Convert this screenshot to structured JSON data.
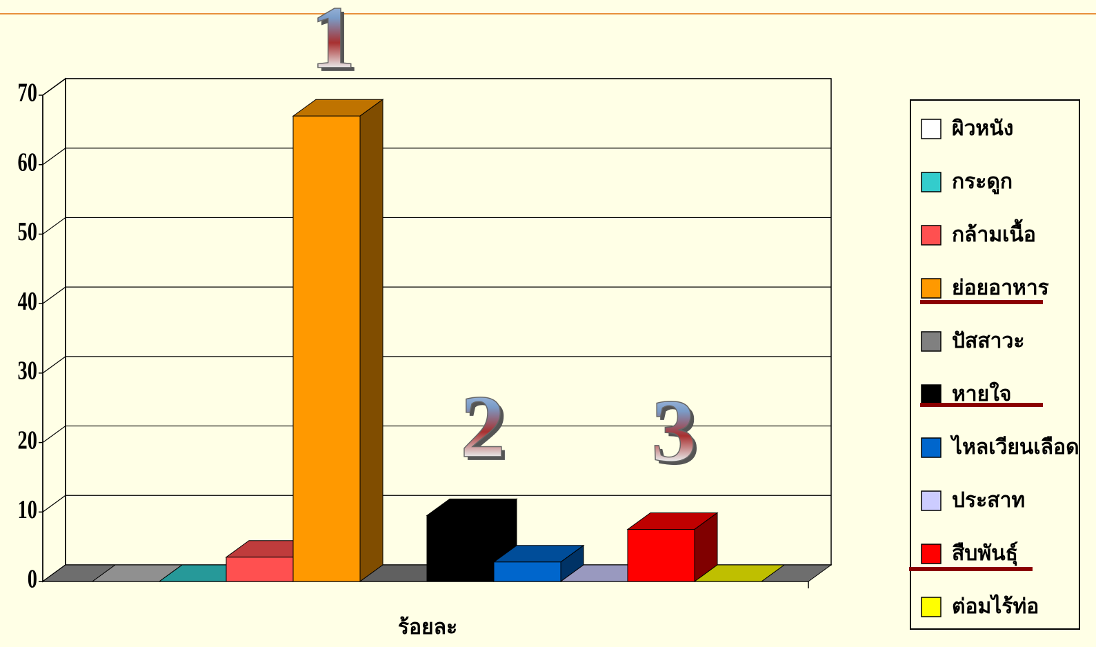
{
  "chart_data": {
    "type": "bar3d",
    "x_label": "ร้อยละ",
    "categories": [
      "ผิวหนัง",
      "กระดูก",
      "กล้ามเนื้อ",
      "ย่อยอาหาร",
      "ปัสสาวะ",
      "หายใจ",
      "ไหลเวียนเลือด",
      "ประสาท",
      "สืบพันธุ์",
      "ต่อมไร้ท่อ"
    ],
    "colors": [
      "#ffffff",
      "#33cccc",
      "#ff5050",
      "#ff9900",
      "#808080",
      "#000000",
      "#0066cc",
      "#ccccff",
      "#ff0000",
      "#ffff00"
    ],
    "values": [
      0,
      0,
      3.5,
      67,
      0,
      9.5,
      2.8,
      0,
      7.5,
      0
    ],
    "ylim": [
      0,
      70
    ],
    "yticks": [
      0,
      10,
      20,
      30,
      40,
      50,
      60,
      70
    ],
    "grid": true,
    "legend": "right",
    "annotations": [
      "1",
      "2",
      "3"
    ]
  }
}
